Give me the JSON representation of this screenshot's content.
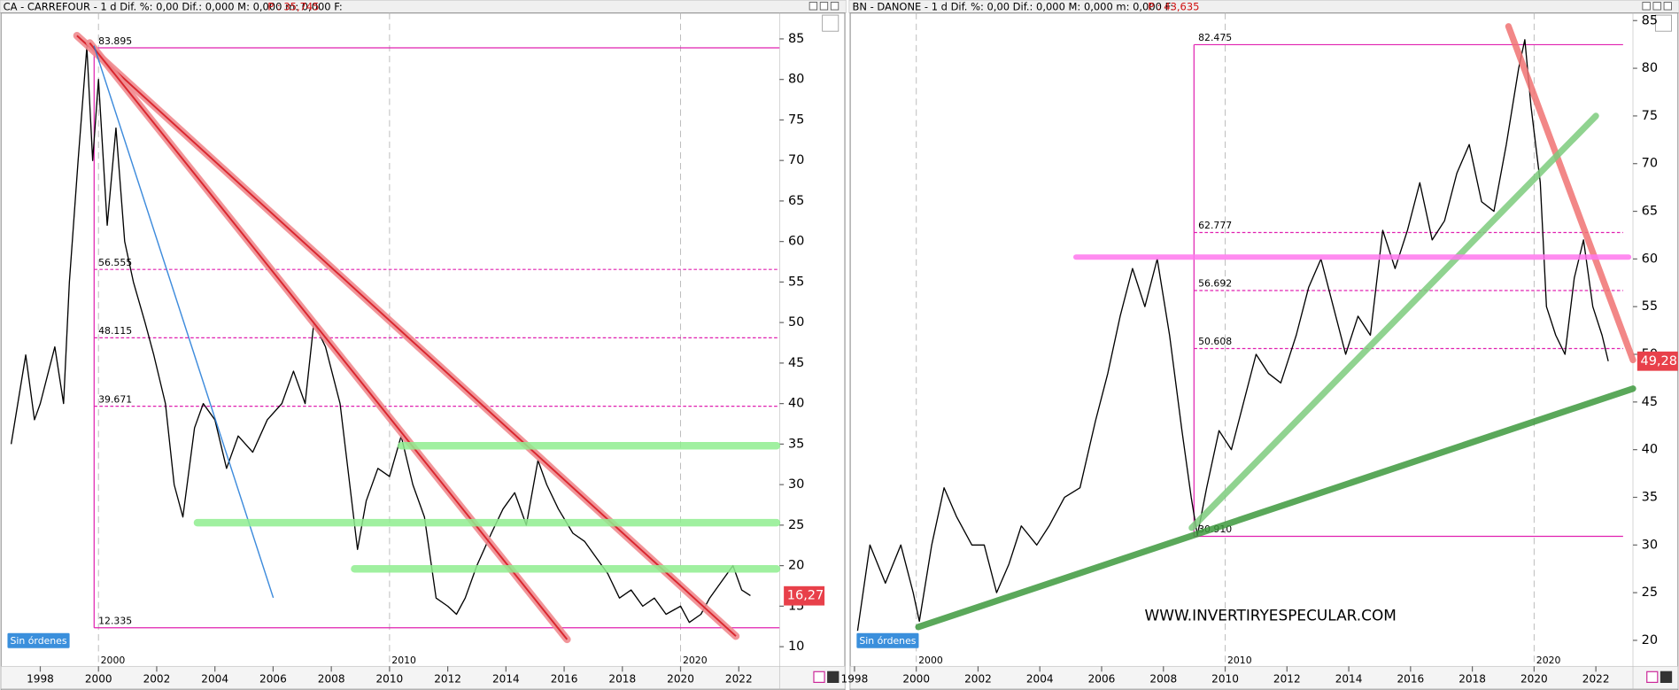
{
  "chart_data": [
    {
      "type": "line",
      "header": "CA - CARREFOUR - 1 d Dif. %: 0,00 Dif.: 0,000 M: 0,000 m: 0,000 F:",
      "price_header": "P : 35,745",
      "color": "#000000",
      "x": [
        1997.0,
        1997.5,
        1997.8,
        1998.0,
        1998.5,
        1998.8,
        1999.0,
        1999.3,
        1999.6,
        1999.8,
        2000.0,
        2000.3,
        2000.6,
        2000.9,
        2001.2,
        2001.6,
        2001.9,
        2002.3,
        2002.6,
        2002.9,
        2003.3,
        2003.6,
        2004.0,
        2004.4,
        2004.8,
        2005.3,
        2005.8,
        2006.3,
        2006.7,
        2007.1,
        2007.4,
        2007.8,
        2008.3,
        2008.6,
        2008.9,
        2009.2,
        2009.6,
        2010.0,
        2010.4,
        2010.8,
        2011.2,
        2011.6,
        2012.0,
        2012.3,
        2012.6,
        2013.0,
        2013.5,
        2013.9,
        2014.3,
        2014.7,
        2015.1,
        2015.4,
        2015.8,
        2016.3,
        2016.7,
        2017.1,
        2017.5,
        2017.9,
        2018.3,
        2018.7,
        2019.1,
        2019.5,
        2020.0,
        2020.3,
        2020.7,
        2021.0,
        2021.4,
        2021.8,
        2022.1,
        2022.4
      ],
      "values": [
        35,
        46,
        38,
        40,
        47,
        40,
        55,
        70,
        84,
        70,
        80,
        62,
        74,
        60,
        55,
        50,
        46,
        40,
        30,
        26,
        37,
        40,
        38,
        32,
        36,
        34,
        38,
        40,
        44,
        40,
        50,
        47,
        40,
        31,
        22,
        28,
        32,
        31,
        36,
        30,
        26,
        16,
        15,
        14,
        16,
        20,
        24,
        27,
        29,
        25,
        33,
        30,
        27,
        24,
        23,
        21,
        19,
        16,
        17,
        15,
        16,
        14,
        15,
        13,
        14,
        16,
        18,
        20,
        17,
        16.3
      ],
      "xlim": [
        1996.8,
        2023.4
      ],
      "ylim": [
        8.9,
        88.2
      ],
      "yticks": [
        10,
        15,
        20,
        25,
        30,
        35,
        40,
        45,
        50,
        55,
        60,
        65,
        70,
        75,
        80,
        85
      ],
      "xticks": [
        1998,
        2000,
        2002,
        2004,
        2006,
        2008,
        2010,
        2012,
        2014,
        2016,
        2018,
        2020,
        2022
      ],
      "decades": [
        2000,
        2010,
        2020
      ],
      "levels": [
        83.895,
        56.555,
        48.115,
        39.671,
        12.335
      ],
      "levels_x": [
        1999.85,
        2023.4
      ],
      "lines": [
        {
          "x": [
            1999.26,
            2021.9
          ],
          "y": [
            85.4,
            11.3
          ],
          "color": "#d9262e"
        },
        {
          "x": [
            1999.7,
            2016.1
          ],
          "y": [
            84.5,
            10.9
          ],
          "color": "#d9262e"
        },
        {
          "x": [
            1999.85,
            2006.0
          ],
          "y": [
            84.1,
            16.1
          ],
          "color": "#1e78d7"
        },
        {
          "x": [
            2010.4,
            2023.3
          ],
          "y": [
            34.8,
            34.8
          ],
          "color": "#90ee90"
        },
        {
          "x": [
            2003.4,
            2023.3
          ],
          "y": [
            25.3,
            25.3
          ],
          "color": "#90ee90"
        },
        {
          "x": [
            2008.8,
            2023.3
          ],
          "y": [
            19.6,
            19.6
          ],
          "color": "#90ee90"
        }
      ],
      "last_price": {
        "value": 16.275,
        "label": "16,275"
      },
      "button": "Sin órdenes"
    },
    {
      "type": "line",
      "header": "BN - DANONE - 1 d Dif. %: 0,00 Dif.: 0,000 M: 0,000 m: 0,000 F:",
      "price_header": "P : 43,635",
      "color": "#000000",
      "x": [
        1998.1,
        1998.5,
        1999.0,
        1999.5,
        1999.9,
        2000.1,
        2000.5,
        2000.9,
        2001.3,
        2001.8,
        2002.2,
        2002.6,
        2003.0,
        2003.4,
        2003.9,
        2004.3,
        2004.8,
        2005.3,
        2005.8,
        2006.2,
        2006.6,
        2007.0,
        2007.4,
        2007.8,
        2008.2,
        2008.6,
        2008.9,
        2009.1,
        2009.4,
        2009.8,
        2010.2,
        2010.6,
        2011.0,
        2011.4,
        2011.8,
        2012.3,
        2012.7,
        2013.1,
        2013.5,
        2013.9,
        2014.3,
        2014.7,
        2015.1,
        2015.5,
        2015.9,
        2016.3,
        2016.7,
        2017.1,
        2017.5,
        2017.9,
        2018.3,
        2018.7,
        2019.1,
        2019.5,
        2019.7,
        2019.9,
        2020.2,
        2020.4,
        2020.7,
        2021.0,
        2021.3,
        2021.6,
        2021.9,
        2022.2,
        2022.4
      ],
      "values": [
        21,
        30,
        26,
        30,
        25,
        22,
        30,
        36,
        33,
        30,
        30,
        25,
        28,
        32,
        30,
        32,
        35,
        36,
        43,
        48,
        54,
        59,
        55,
        60,
        52,
        42,
        35,
        31,
        36,
        42,
        40,
        45,
        50,
        48,
        47,
        52,
        57,
        60,
        55,
        50,
        54,
        52,
        63,
        59,
        63,
        68,
        62,
        64,
        69,
        72,
        66,
        65,
        72,
        80,
        83,
        76,
        68,
        55,
        52,
        50,
        58,
        62,
        55,
        52,
        49.28
      ],
      "xlim": [
        1998.0,
        2023.2
      ],
      "ylim": [
        18.4,
        85.8
      ],
      "yticks": [
        20,
        25,
        30,
        35,
        40,
        45,
        50,
        55,
        60,
        65,
        70,
        75,
        80,
        85
      ],
      "xticks": [
        1998,
        2000,
        2002,
        2004,
        2006,
        2008,
        2010,
        2012,
        2014,
        2016,
        2018,
        2020,
        2022
      ],
      "decades": [
        2000,
        2010,
        2020
      ],
      "levels": [
        82.475,
        62.777,
        56.692,
        50.608,
        {
          "value": 30.91,
          "label": "30.910"
        }
      ],
      "levels_x": [
        2008.99,
        2022.88
      ],
      "lines": [
        {
          "x": [
            2019.17,
            2023.2
          ],
          "y": [
            84.4,
            49.4
          ],
          "color": "#f07373"
        },
        {
          "x": [
            2008.92,
            2022.0
          ],
          "y": [
            31.8,
            75.0
          ],
          "color": "#7dcc7d"
        },
        {
          "x": [
            2000.07,
            2023.2
          ],
          "y": [
            21.4,
            46.4
          ],
          "color": "#3e9a3e"
        },
        {
          "x": [
            2005.17,
            2023.06
          ],
          "y": [
            60.2,
            60.2
          ],
          "color": "#ff77ee"
        }
      ],
      "last_price": {
        "value": 49.28,
        "label": "49,28"
      },
      "button": "Sin órdenes",
      "annotation": "WWW.INVERTIRYESPECULAR.COM"
    }
  ]
}
